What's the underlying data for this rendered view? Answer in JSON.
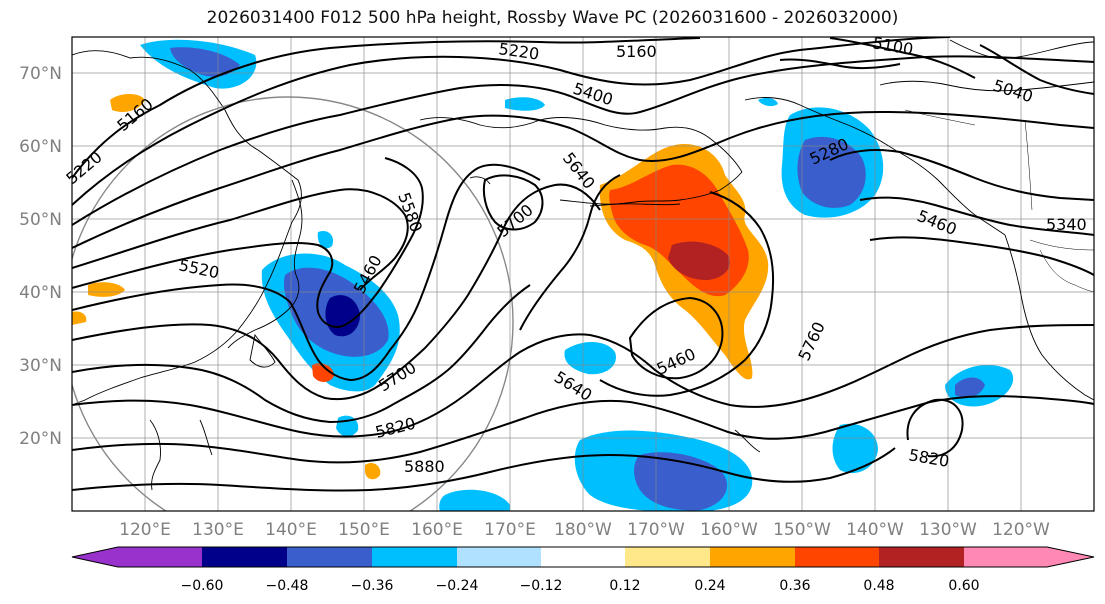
{
  "title": "2026031400 F012 500 hPa height, Rossby Wave PC (2026031600 - 2026032000)",
  "lat_labels": [
    "70°N",
    "60°N",
    "50°N",
    "40°N",
    "30°N",
    "20°N"
  ],
  "lon_labels": [
    "120°E",
    "130°E",
    "140°E",
    "150°E",
    "160°E",
    "170°E",
    "180°W",
    "170°W",
    "160°W",
    "150°W",
    "140°W",
    "130°W",
    "120°W"
  ],
  "contour_labels": [
    "5220",
    "5160",
    "5100",
    "5040",
    "5160",
    "5220",
    "5400",
    "5640",
    "5580",
    "5700",
    "5280",
    "5460",
    "5340",
    "5520",
    "5460",
    "5460",
    "5760",
    "5700",
    "5640",
    "5820",
    "5880",
    "5820"
  ],
  "colorbar": {
    "ticks": [
      "−0.60",
      "−0.48",
      "−0.36",
      "−0.24",
      "−0.12",
      "0.12",
      "0.24",
      "0.36",
      "0.48",
      "0.60"
    ],
    "colors": [
      "#9932cc",
      "#00008b",
      "#3a5fcd",
      "#00bfff",
      "#b0e2ff",
      "#ffffff",
      "#ffe88a",
      "#ffa500",
      "#ff4500",
      "#b22222",
      "#ff88b4"
    ]
  },
  "anomaly_colors": {
    "neg_strong": "#00008b",
    "neg_mid": "#3a5fcd",
    "neg_weak": "#00bfff",
    "pos_weak": "#ffa500",
    "pos_mid": "#ff4500",
    "pos_strong": "#b22222"
  }
}
